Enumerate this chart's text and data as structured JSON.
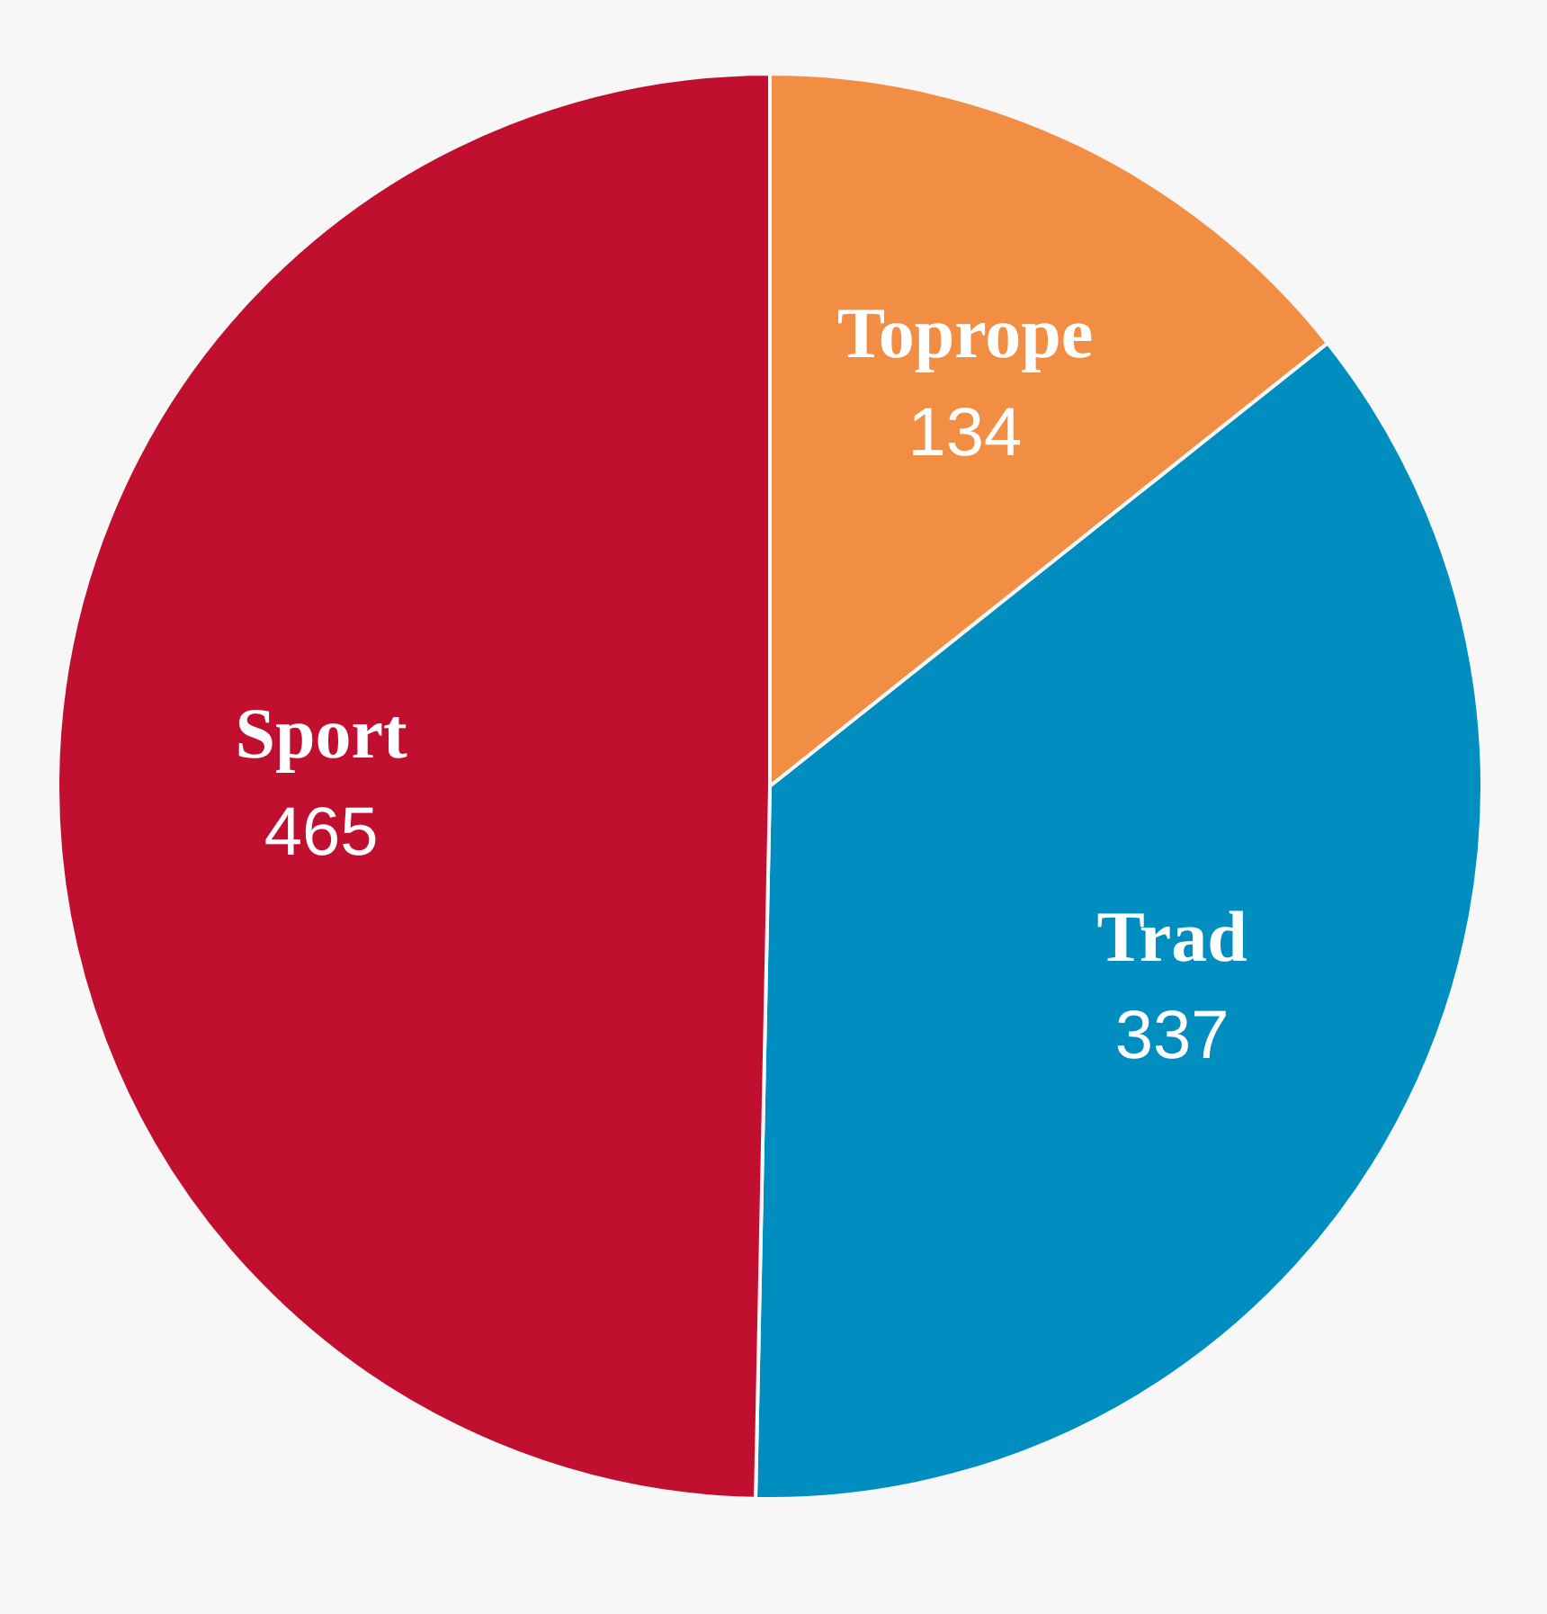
{
  "chart_data": {
    "type": "pie",
    "categories": [
      "Toprope",
      "Trad",
      "Sport"
    ],
    "values": [
      134,
      337,
      465
    ],
    "colors": [
      "#f28e43",
      "#008dbf",
      "#c00f2f"
    ],
    "data_labels": true
  }
}
